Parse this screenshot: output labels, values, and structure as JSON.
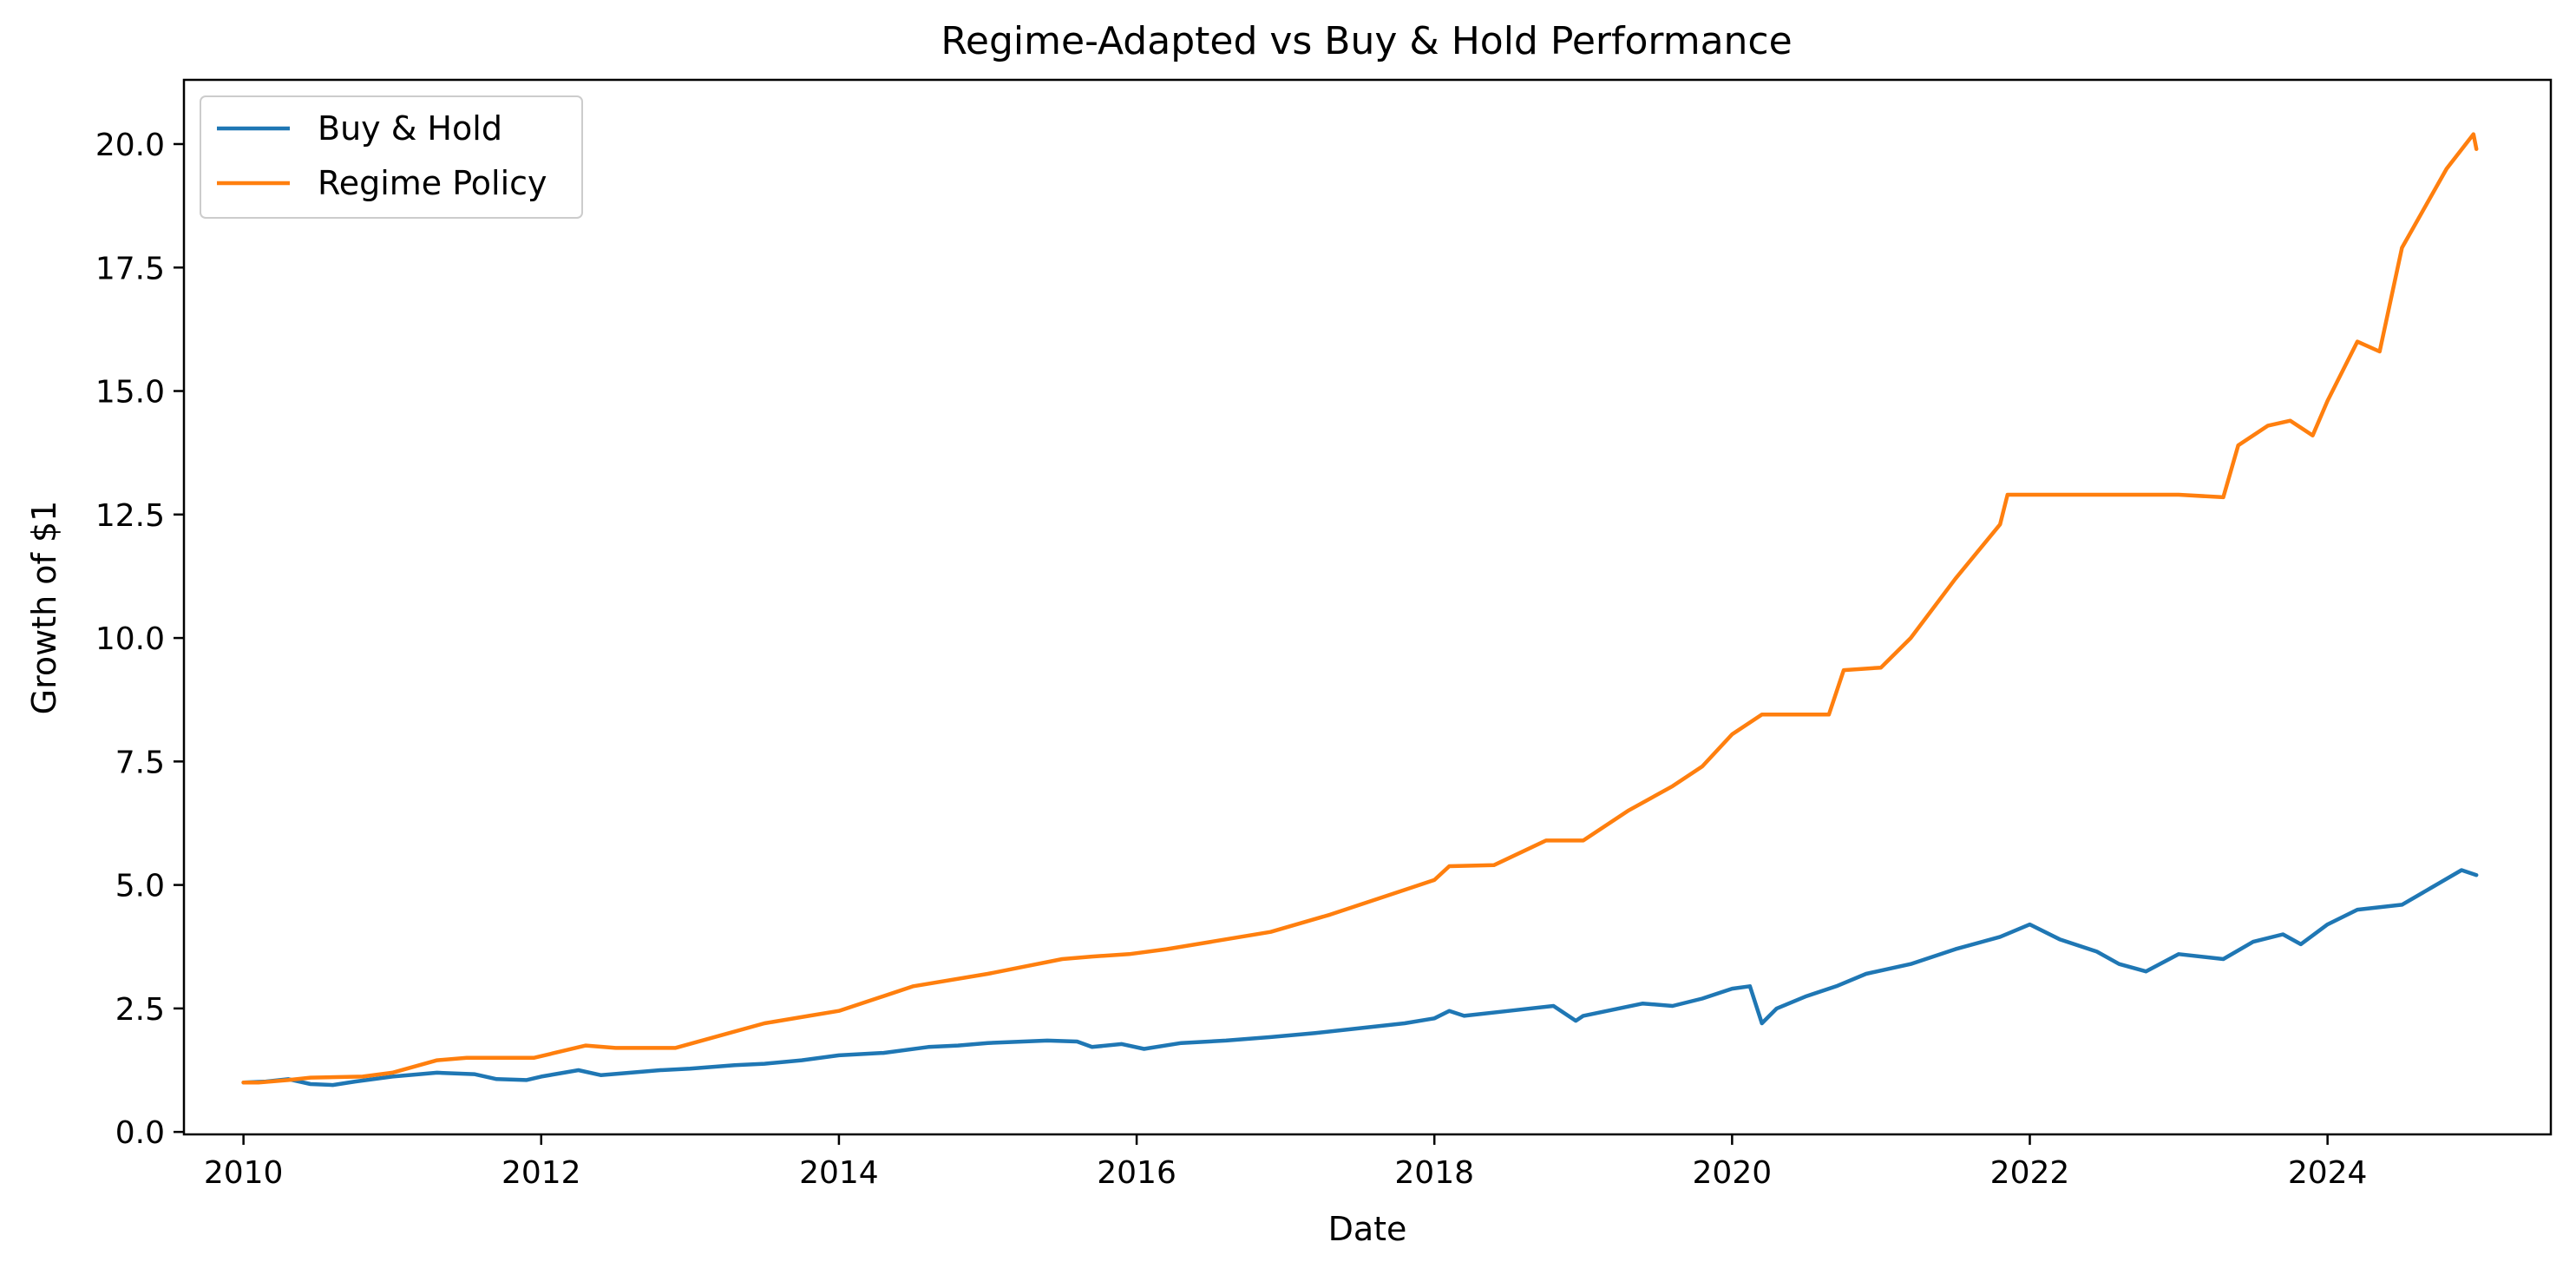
{
  "chart_data": {
    "type": "line",
    "title": "Regime-Adapted vs Buy & Hold Performance",
    "xlabel": "Date",
    "ylabel": "Growth of $1",
    "xlim": [
      2009.6,
      2025.5
    ],
    "ylim": [
      -0.05,
      21.3
    ],
    "xticks": [
      2010,
      2012,
      2014,
      2016,
      2018,
      2020,
      2022,
      2024
    ],
    "xtick_labels": [
      "2010",
      "2012",
      "2014",
      "2016",
      "2018",
      "2020",
      "2022",
      "2024"
    ],
    "yticks": [
      0,
      2.5,
      5,
      7.5,
      10,
      12.5,
      15,
      17.5,
      20
    ],
    "ytick_labels": [
      "0.0",
      "2.5",
      "5.0",
      "7.5",
      "10.0",
      "12.5",
      "15.0",
      "17.5",
      "20.0"
    ],
    "grid": false,
    "legend_position": "upper-left",
    "series": [
      {
        "name": "Buy & Hold",
        "color": "#1f77b4",
        "x": [
          2010.0,
          2010.15,
          2010.3,
          2010.45,
          2010.6,
          2010.75,
          2011.0,
          2011.3,
          2011.55,
          2011.7,
          2011.9,
          2012.0,
          2012.25,
          2012.4,
          2012.6,
          2012.8,
          2013.0,
          2013.3,
          2013.5,
          2013.75,
          2014.0,
          2014.3,
          2014.6,
          2014.8,
          2015.0,
          2015.4,
          2015.6,
          2015.7,
          2015.9,
          2016.05,
          2016.3,
          2016.6,
          2016.9,
          2017.2,
          2017.5,
          2017.8,
          2018.0,
          2018.1,
          2018.2,
          2018.5,
          2018.8,
          2018.95,
          2019.0,
          2019.4,
          2019.6,
          2019.8,
          2020.0,
          2020.12,
          2020.2,
          2020.3,
          2020.5,
          2020.7,
          2020.9,
          2021.2,
          2021.5,
          2021.8,
          2022.0,
          2022.2,
          2022.45,
          2022.6,
          2022.78,
          2023.0,
          2023.3,
          2023.5,
          2023.7,
          2023.82,
          2024.0,
          2024.2,
          2024.5,
          2024.7,
          2024.9,
          2025.0
        ],
        "values": [
          1.0,
          1.02,
          1.07,
          0.97,
          0.95,
          1.02,
          1.12,
          1.2,
          1.17,
          1.07,
          1.05,
          1.12,
          1.25,
          1.15,
          1.2,
          1.25,
          1.28,
          1.35,
          1.38,
          1.45,
          1.55,
          1.6,
          1.72,
          1.75,
          1.8,
          1.85,
          1.83,
          1.72,
          1.78,
          1.68,
          1.8,
          1.85,
          1.92,
          2.0,
          2.1,
          2.2,
          2.3,
          2.45,
          2.35,
          2.45,
          2.55,
          2.25,
          2.35,
          2.6,
          2.55,
          2.7,
          2.9,
          2.95,
          2.2,
          2.5,
          2.75,
          2.95,
          3.2,
          3.4,
          3.7,
          3.95,
          4.2,
          3.9,
          3.65,
          3.4,
          3.25,
          3.6,
          3.5,
          3.85,
          4.0,
          3.8,
          4.2,
          4.5,
          4.6,
          4.95,
          5.3,
          5.2
        ]
      },
      {
        "name": "Regime Policy",
        "color": "#ff7f0e",
        "x": [
          2010.0,
          2010.1,
          2010.3,
          2010.45,
          2010.8,
          2011.0,
          2011.3,
          2011.5,
          2011.95,
          2012.3,
          2012.5,
          2012.9,
          2013.2,
          2013.5,
          2013.8,
          2014.0,
          2014.5,
          2015.0,
          2015.5,
          2015.7,
          2015.95,
          2016.2,
          2016.5,
          2016.9,
          2017.3,
          2017.7,
          2018.0,
          2018.1,
          2018.4,
          2018.75,
          2019.0,
          2019.3,
          2019.6,
          2019.8,
          2020.0,
          2020.2,
          2020.65,
          2020.75,
          2021.0,
          2021.2,
          2021.5,
          2021.8,
          2021.85,
          2022.0,
          2022.5,
          2023.0,
          2023.3,
          2023.4,
          2023.6,
          2023.75,
          2023.9,
          2024.0,
          2024.2,
          2024.35,
          2024.5,
          2024.8,
          2024.98,
          2025.0
        ],
        "values": [
          1.0,
          1.0,
          1.05,
          1.1,
          1.12,
          1.2,
          1.45,
          1.5,
          1.5,
          1.75,
          1.7,
          1.7,
          1.95,
          2.2,
          2.35,
          2.45,
          2.95,
          3.2,
          3.5,
          3.55,
          3.6,
          3.7,
          3.85,
          4.05,
          4.4,
          4.8,
          5.1,
          5.38,
          5.4,
          5.9,
          5.9,
          6.5,
          7.0,
          7.4,
          8.05,
          8.45,
          8.45,
          9.35,
          9.4,
          10.0,
          11.2,
          12.3,
          12.9,
          12.9,
          12.9,
          12.9,
          12.85,
          13.9,
          14.3,
          14.4,
          14.1,
          14.8,
          16.0,
          15.8,
          17.9,
          19.5,
          20.2,
          19.9
        ]
      }
    ]
  }
}
